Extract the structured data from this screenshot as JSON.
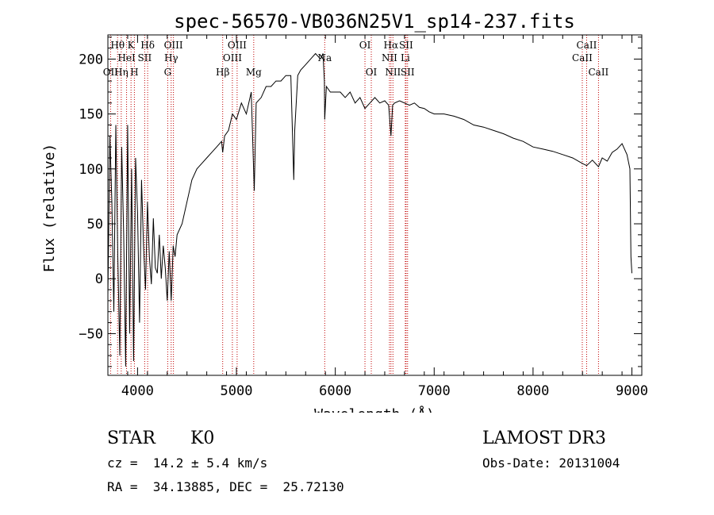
{
  "chart_data": {
    "type": "line",
    "title": "spec-56570-VB036N25V1_sp14-237.fits",
    "xlabel": "Wavelength (Å)",
    "ylabel": "Flux (relative)",
    "xlim": [
      3700,
      9100
    ],
    "ylim": [
      -88,
      222
    ],
    "xticks": [
      4000,
      5000,
      6000,
      7000,
      8000,
      9000
    ],
    "yticks": [
      -50,
      0,
      50,
      100,
      150,
      200
    ],
    "grid": false,
    "series": [
      {
        "name": "flux",
        "x": [
          3700,
          3720,
          3740,
          3760,
          3780,
          3800,
          3820,
          3840,
          3860,
          3880,
          3900,
          3920,
          3940,
          3960,
          3980,
          4000,
          4020,
          4040,
          4060,
          4080,
          4100,
          4120,
          4140,
          4160,
          4180,
          4200,
          4220,
          4240,
          4260,
          4280,
          4300,
          4320,
          4340,
          4360,
          4380,
          4400,
          4450,
          4500,
          4550,
          4600,
          4650,
          4700,
          4750,
          4800,
          4850,
          4861,
          4880,
          4920,
          4960,
          5000,
          5050,
          5100,
          5150,
          5180,
          5200,
          5250,
          5300,
          5350,
          5400,
          5450,
          5500,
          5550,
          5580,
          5590,
          5620,
          5650,
          5700,
          5750,
          5800,
          5850,
          5875,
          5890,
          5893,
          5910,
          5950,
          6000,
          6050,
          6100,
          6150,
          6200,
          6250,
          6300,
          6350,
          6400,
          6450,
          6500,
          6540,
          6563,
          6580,
          6600,
          6650,
          6700,
          6750,
          6800,
          6850,
          6900,
          6950,
          7000,
          7100,
          7200,
          7300,
          7400,
          7500,
          7600,
          7700,
          7800,
          7900,
          8000,
          8100,
          8200,
          8300,
          8400,
          8498,
          8542,
          8600,
          8662,
          8700,
          8750,
          8800,
          8850,
          8900,
          8950,
          8980,
          8990,
          9000
        ],
        "y": [
          -15,
          130,
          70,
          -30,
          140,
          20,
          -70,
          120,
          40,
          -80,
          140,
          -50,
          100,
          -75,
          110,
          60,
          -40,
          90,
          30,
          -10,
          70,
          20,
          -5,
          55,
          10,
          5,
          40,
          0,
          30,
          10,
          -20,
          25,
          -20,
          30,
          20,
          40,
          50,
          70,
          90,
          100,
          105,
          110,
          115,
          120,
          125,
          115,
          130,
          135,
          150,
          145,
          160,
          150,
          170,
          80,
          160,
          165,
          175,
          175,
          180,
          180,
          185,
          185,
          90,
          135,
          185,
          190,
          195,
          200,
          205,
          200,
          205,
          180,
          145,
          175,
          170,
          170,
          170,
          165,
          170,
          160,
          165,
          155,
          160,
          165,
          160,
          162,
          158,
          130,
          158,
          160,
          162,
          160,
          158,
          160,
          156,
          155,
          152,
          150,
          150,
          148,
          145,
          140,
          138,
          135,
          132,
          128,
          125,
          120,
          118,
          116,
          113,
          110,
          105,
          103,
          108,
          102,
          110,
          107,
          115,
          118,
          123,
          113,
          100,
          20,
          5
        ]
      }
    ],
    "spectral_lines": [
      {
        "label": "Hθ",
        "wavelength": 3798,
        "row": 1
      },
      {
        "label": "OII",
        "wavelength": 3727,
        "row": 3
      },
      {
        "label": "Hη",
        "wavelength": 3835,
        "row": 3
      },
      {
        "label": "HeI",
        "wavelength": 3889,
        "row": 2
      },
      {
        "label": "SII",
        "wavelength": 4072,
        "row": 2
      },
      {
        "label": "K",
        "wavelength": 3934,
        "row": 1
      },
      {
        "label": "H",
        "wavelength": 3968,
        "row": 3
      },
      {
        "label": "Hδ",
        "wavelength": 4102,
        "row": 1
      },
      {
        "label": "OIII",
        "wavelength": 4363,
        "row": 1
      },
      {
        "label": "Hγ",
        "wavelength": 4340,
        "row": 2
      },
      {
        "label": "G",
        "wavelength": 4305,
        "row": 3
      },
      {
        "label": "Hβ",
        "wavelength": 4861,
        "row": 3
      },
      {
        "label": "OIII",
        "wavelength": 4959,
        "row": 2
      },
      {
        "label": "OIII",
        "wavelength": 5007,
        "row": 1
      },
      {
        "label": "Mg",
        "wavelength": 5175,
        "row": 3
      },
      {
        "label": "Na",
        "wavelength": 5893,
        "row": 2
      },
      {
        "label": "OI",
        "wavelength": 6300,
        "row": 1
      },
      {
        "label": "OI",
        "wavelength": 6364,
        "row": 3
      },
      {
        "label": "Hα",
        "wavelength": 6563,
        "row": 1
      },
      {
        "label": "NII",
        "wavelength": 6548,
        "row": 2
      },
      {
        "label": "NII",
        "wavelength": 6583,
        "row": 3
      },
      {
        "label": "SII",
        "wavelength": 6716,
        "row": 1
      },
      {
        "label": "Li",
        "wavelength": 6708,
        "row": 2
      },
      {
        "label": "SII",
        "wavelength": 6731,
        "row": 3
      },
      {
        "label": "CaII",
        "wavelength": 8542,
        "row": 1
      },
      {
        "label": "CaII",
        "wavelength": 8498,
        "row": 2
      },
      {
        "label": "CaII",
        "wavelength": 8662,
        "row": 3
      }
    ]
  },
  "info": {
    "object_class": "STAR",
    "subclass": "K0",
    "redshift": "cz =  14.2 ± 5.4 km/s",
    "coordinates": "RA =  34.13885, DEC =  25.72130",
    "survey": "LAMOST DR3",
    "obs_date": "Obs-Date: 20131004"
  },
  "colors": {
    "spectrum": "#000000",
    "line_marker": "#c00000",
    "axes": "#000000",
    "background": "#ffffff"
  }
}
